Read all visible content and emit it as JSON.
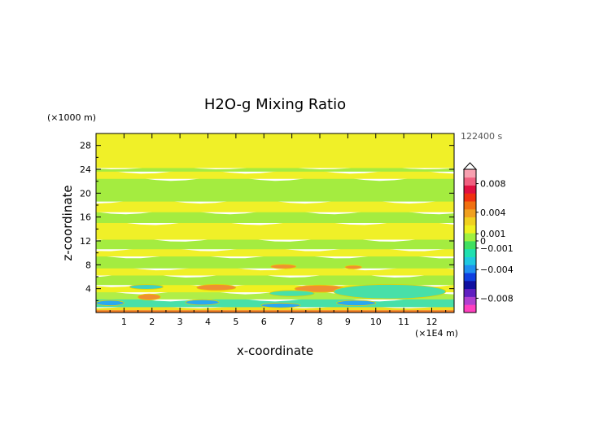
{
  "chart_data": {
    "type": "heatmap",
    "title": "H2O-g Mixing Ratio",
    "xlabel": "x-coordinate",
    "ylabel": "z-coordinate",
    "x_unit_label": "(×1E4 m)",
    "y_unit_label": "(×1000 m)",
    "time_label": "122400 s",
    "xlim": [
      0,
      12.8
    ],
    "ylim": [
      0,
      30
    ],
    "x_ticks": [
      "1",
      "2",
      "3",
      "4",
      "5",
      "6",
      "7",
      "8",
      "9",
      "10",
      "11",
      "12"
    ],
    "y_ticks": [
      "4",
      "8",
      "12",
      "16",
      "20",
      "24",
      "28"
    ],
    "colorbar": {
      "range": [
        -0.01,
        0.01
      ],
      "labels": [
        {
          "text": "0.008",
          "value": 0.008
        },
        {
          "text": "0.004",
          "value": 0.004
        },
        {
          "text": "0.001",
          "value": 0.001
        },
        {
          "text": "0",
          "value": 0.0
        },
        {
          "text": "−0.001",
          "value": -0.001
        },
        {
          "text": "−0.004",
          "value": -0.004
        },
        {
          "text": "−0.008",
          "value": -0.008
        }
      ],
      "colors": [
        "#ff40c0",
        "#b040d0",
        "#6020c0",
        "#1010a0",
        "#1040e0",
        "#2090f0",
        "#20c8e0",
        "#20e0b0",
        "#40e060",
        "#a0f040",
        "#f0f020",
        "#f0d020",
        "#f0a020",
        "#f07010",
        "#f03010",
        "#e01040",
        "#f06080",
        "#f8a0b0"
      ]
    },
    "bands": [
      {
        "z": [
          0.0,
          0.4
        ],
        "color": "#f07a20"
      },
      {
        "z": [
          0.4,
          0.9
        ],
        "color": "#f0e020"
      },
      {
        "z": [
          0.9,
          2.2
        ],
        "color": "#48e0a8"
      },
      {
        "z": [
          2.2,
          3.4
        ],
        "color": "#b0ee48"
      },
      {
        "z": [
          3.4,
          4.6
        ],
        "color": "#f0f020"
      },
      {
        "z": [
          4.6,
          6.2
        ],
        "color": "#a8ec40"
      },
      {
        "z": [
          6.2,
          7.4
        ],
        "color": "#f0f028"
      },
      {
        "z": [
          7.4,
          9.4
        ],
        "color": "#a4ec40"
      },
      {
        "z": [
          9.4,
          10.6
        ],
        "color": "#f0f028"
      },
      {
        "z": [
          10.6,
          12.2
        ],
        "color": "#a4ec40"
      },
      {
        "z": [
          12.2,
          15.0
        ],
        "color": "#f0f028"
      },
      {
        "z": [
          15.0,
          16.8
        ],
        "color": "#a4ec40"
      },
      {
        "z": [
          16.8,
          18.6
        ],
        "color": "#f0f028"
      },
      {
        "z": [
          18.6,
          22.4
        ],
        "color": "#a4ec40"
      },
      {
        "z": [
          22.4,
          23.6
        ],
        "color": "#f0f028"
      },
      {
        "z": [
          23.6,
          24.2
        ],
        "color": "#a4ec40"
      },
      {
        "z": [
          24.2,
          30.0
        ],
        "color": "#f0f028"
      }
    ],
    "blobs": [
      {
        "x": 8.0,
        "z": 4.0,
        "rx": 0.9,
        "rz": 0.6,
        "color": "#f09030"
      },
      {
        "x": 4.3,
        "z": 4.2,
        "rx": 0.7,
        "rz": 0.5,
        "color": "#f09030"
      },
      {
        "x": 1.9,
        "z": 2.6,
        "rx": 0.4,
        "rz": 0.5,
        "color": "#f09030"
      },
      {
        "x": 6.7,
        "z": 7.7,
        "rx": 0.45,
        "rz": 0.35,
        "color": "#f09030"
      },
      {
        "x": 9.2,
        "z": 7.6,
        "rx": 0.3,
        "rz": 0.3,
        "color": "#f09030"
      },
      {
        "x": 0.5,
        "z": 1.6,
        "rx": 0.5,
        "rz": 0.45,
        "color": "#2aa8f0"
      },
      {
        "x": 3.8,
        "z": 1.7,
        "rx": 0.6,
        "rz": 0.45,
        "color": "#2aa8f0"
      },
      {
        "x": 6.6,
        "z": 1.2,
        "rx": 0.7,
        "rz": 0.4,
        "color": "#2aa8f0"
      },
      {
        "x": 9.3,
        "z": 1.6,
        "rx": 0.7,
        "rz": 0.45,
        "color": "#2aa8f0"
      },
      {
        "x": 1.8,
        "z": 4.3,
        "rx": 0.6,
        "rz": 0.4,
        "color": "#40d0c0"
      },
      {
        "x": 10.5,
        "z": 3.5,
        "rx": 2.0,
        "rz": 1.2,
        "color": "#48e0a8"
      },
      {
        "x": 7.0,
        "z": 3.2,
        "rx": 0.8,
        "rz": 0.5,
        "color": "#48e0a8"
      }
    ]
  }
}
